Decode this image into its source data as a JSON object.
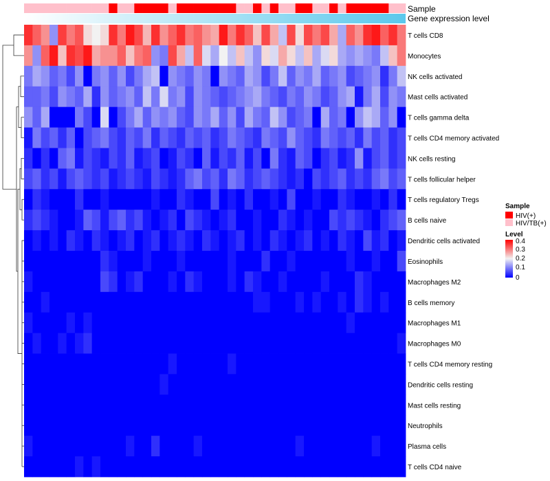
{
  "chart_data": {
    "type": "heatmap",
    "title": "",
    "annotations": {
      "sample_label": "Sample",
      "expression_label": "Gene expression level"
    },
    "legend": {
      "position": "right",
      "sample_title": "Sample",
      "sample_entries": [
        {
          "label": "HIV(+)",
          "color": "#ff0000"
        },
        {
          "label": "HIV/TB(+)",
          "color": "#ffc0cb"
        }
      ],
      "level_title": "Level",
      "level_ticks": [
        "0.4",
        "0.3",
        "0.2",
        "0.1",
        "0"
      ],
      "color_scale": {
        "min": 0,
        "max": 0.4,
        "low": "#0000ff",
        "mid": "#f2f2f2",
        "high": "#ff0000"
      }
    },
    "samples": [
      "HIV/TB(+)",
      "HIV/TB(+)",
      "HIV/TB(+)",
      "HIV/TB(+)",
      "HIV/TB(+)",
      "HIV/TB(+)",
      "HIV/TB(+)",
      "HIV/TB(+)",
      "HIV/TB(+)",
      "HIV/TB(+)",
      "HIV(+)",
      "HIV/TB(+)",
      "HIV/TB(+)",
      "HIV(+)",
      "HIV(+)",
      "HIV(+)",
      "HIV(+)",
      "HIV/TB(+)",
      "HIV(+)",
      "HIV(+)",
      "HIV(+)",
      "HIV(+)",
      "HIV(+)",
      "HIV(+)",
      "HIV(+)",
      "HIV/TB(+)",
      "HIV/TB(+)",
      "HIV(+)",
      "HIV/TB(+)",
      "HIV(+)",
      "HIV/TB(+)",
      "HIV/TB(+)",
      "HIV(+)",
      "HIV(+)",
      "HIV/TB(+)",
      "HIV/TB(+)",
      "HIV(+)",
      "HIV/TB(+)",
      "HIV(+)",
      "HIV(+)",
      "HIV(+)",
      "HIV(+)",
      "HIV(+)",
      "HIV/TB(+)",
      "HIV/TB(+)"
    ],
    "rows": [
      {
        "name": "T cells CD8",
        "values": [
          0.36,
          0.32,
          0.28,
          0.12,
          0.35,
          0.3,
          0.33,
          0.22,
          0.2,
          0.22,
          0.36,
          0.3,
          0.38,
          0.34,
          0.25,
          0.36,
          0.28,
          0.32,
          0.36,
          0.3,
          0.32,
          0.28,
          0.26,
          0.38,
          0.3,
          0.36,
          0.32,
          0.24,
          0.34,
          0.26,
          0.16,
          0.34,
          0.22,
          0.34,
          0.3,
          0.34,
          0.26,
          0.14,
          0.32,
          0.28,
          0.36,
          0.38,
          0.32,
          0.36,
          0.3
        ]
      },
      {
        "name": "Monocytes",
        "values": [
          0.28,
          0.12,
          0.32,
          0.38,
          0.24,
          0.36,
          0.34,
          0.38,
          0.26,
          0.28,
          0.28,
          0.32,
          0.24,
          0.3,
          0.32,
          0.12,
          0.1,
          0.34,
          0.26,
          0.16,
          0.32,
          0.18,
          0.14,
          0.2,
          0.16,
          0.24,
          0.16,
          0.12,
          0.22,
          0.18,
          0.26,
          0.22,
          0.16,
          0.24,
          0.14,
          0.18,
          0.22,
          0.14,
          0.12,
          0.14,
          0.12,
          0.1,
          0.16,
          0.24,
          0.3
        ]
      },
      {
        "name": "NK cells activated",
        "values": [
          0.1,
          0.14,
          0.12,
          0.08,
          0.1,
          0.06,
          0.12,
          0.0,
          0.1,
          0.12,
          0.08,
          0.12,
          0.06,
          0.1,
          0.14,
          0.16,
          0.0,
          0.12,
          0.1,
          0.08,
          0.12,
          0.1,
          0.0,
          0.12,
          0.1,
          0.08,
          0.14,
          0.12,
          0.06,
          0.1,
          0.16,
          0.08,
          0.12,
          0.1,
          0.14,
          0.08,
          0.1,
          0.12,
          0.06,
          0.08,
          0.1,
          0.12,
          0.04,
          0.1,
          0.16
        ]
      },
      {
        "name": "Mast cells activated",
        "values": [
          0.08,
          0.08,
          0.1,
          0.06,
          0.12,
          0.1,
          0.08,
          0.14,
          0.04,
          0.12,
          0.08,
          0.1,
          0.12,
          0.08,
          0.16,
          0.1,
          0.18,
          0.1,
          0.12,
          0.06,
          0.12,
          0.1,
          0.08,
          0.06,
          0.08,
          0.1,
          0.12,
          0.14,
          0.1,
          0.08,
          0.06,
          0.1,
          0.08,
          0.12,
          0.1,
          0.06,
          0.08,
          0.12,
          0.14,
          0.02,
          0.1,
          0.14,
          0.06,
          0.12,
          0.1
        ]
      },
      {
        "name": "T cells gamma delta",
        "values": [
          0.12,
          0.08,
          0.14,
          0.0,
          0.0,
          0.0,
          0.1,
          0.06,
          0.0,
          0.18,
          0.0,
          0.06,
          0.1,
          0.14,
          0.08,
          0.12,
          0.1,
          0.12,
          0.08,
          0.06,
          0.12,
          0.1,
          0.14,
          0.08,
          0.12,
          0.06,
          0.14,
          0.1,
          0.08,
          0.16,
          0.12,
          0.06,
          0.08,
          0.1,
          0.0,
          0.14,
          0.08,
          0.1,
          0.0,
          0.12,
          0.16,
          0.14,
          0.08,
          0.12,
          0.0
        ]
      },
      {
        "name": "T cells CD4 memory activated",
        "values": [
          0.02,
          0.1,
          0.06,
          0.08,
          0.04,
          0.08,
          0.0,
          0.06,
          0.08,
          0.1,
          0.06,
          0.04,
          0.08,
          0.06,
          0.1,
          0.04,
          0.08,
          0.06,
          0.04,
          0.08,
          0.06,
          0.08,
          0.04,
          0.06,
          0.1,
          0.08,
          0.06,
          0.04,
          0.1,
          0.08,
          0.06,
          0.12,
          0.08,
          0.06,
          0.04,
          0.1,
          0.08,
          0.06,
          0.08,
          0.04,
          0.1,
          0.06,
          0.08,
          0.04,
          0.06
        ]
      },
      {
        "name": "NK cells resting",
        "values": [
          0.04,
          0.0,
          0.04,
          0.0,
          0.08,
          0.1,
          0.02,
          0.06,
          0.04,
          0.02,
          0.06,
          0.04,
          0.08,
          0.02,
          0.04,
          0.06,
          0.0,
          0.02,
          0.06,
          0.04,
          0.0,
          0.08,
          0.02,
          0.06,
          0.04,
          0.08,
          0.02,
          0.06,
          0.0,
          0.1,
          0.04,
          0.02,
          0.08,
          0.06,
          0.0,
          0.04,
          0.06,
          0.02,
          0.04,
          0.12,
          0.02,
          0.06,
          0.08,
          0.04,
          0.06
        ]
      },
      {
        "name": "T cells follicular helper",
        "values": [
          0.06,
          0.08,
          0.04,
          0.06,
          0.02,
          0.06,
          0.08,
          0.06,
          0.04,
          0.06,
          0.02,
          0.04,
          0.06,
          0.04,
          0.02,
          0.06,
          0.04,
          0.02,
          0.04,
          0.08,
          0.1,
          0.06,
          0.08,
          0.04,
          0.1,
          0.08,
          0.04,
          0.06,
          0.08,
          0.06,
          0.04,
          0.02,
          0.04,
          0.0,
          0.06,
          0.04,
          0.06,
          0.08,
          0.04,
          0.06,
          0.04,
          0.08,
          0.1,
          0.06,
          0.08
        ]
      },
      {
        "name": "T cells regulatory  Tregs",
        "values": [
          0.0,
          0.04,
          0.02,
          0.0,
          0.0,
          0.0,
          0.04,
          0.0,
          0.0,
          0.02,
          0.0,
          0.0,
          0.0,
          0.0,
          0.0,
          0.02,
          0.0,
          0.0,
          0.04,
          0.02,
          0.0,
          0.0,
          0.06,
          0.0,
          0.02,
          0.0,
          0.04,
          0.0,
          0.0,
          0.02,
          0.0,
          0.06,
          0.0,
          0.0,
          0.02,
          0.0,
          0.0,
          0.04,
          0.02,
          0.0,
          0.0,
          0.02,
          0.0,
          0.04,
          0.0
        ]
      },
      {
        "name": "B cells naive",
        "values": [
          0.04,
          0.06,
          0.04,
          0.02,
          0.0,
          0.0,
          0.02,
          0.08,
          0.06,
          0.02,
          0.06,
          0.08,
          0.04,
          0.06,
          0.02,
          0.0,
          0.02,
          0.04,
          0.0,
          0.06,
          0.04,
          0.02,
          0.0,
          0.02,
          0.04,
          0.0,
          0.0,
          0.02,
          0.0,
          0.0,
          0.04,
          0.02,
          0.0,
          0.02,
          0.0,
          0.0,
          0.06,
          0.04,
          0.06,
          0.04,
          0.02,
          0.0,
          0.04,
          0.06,
          0.08
        ]
      },
      {
        "name": "Dendritic cells activated",
        "values": [
          0.0,
          0.02,
          0.0,
          0.02,
          0.0,
          0.04,
          0.02,
          0.0,
          0.04,
          0.02,
          0.0,
          0.02,
          0.04,
          0.0,
          0.02,
          0.04,
          0.0,
          0.02,
          0.04,
          0.02,
          0.0,
          0.04,
          0.02,
          0.0,
          0.02,
          0.04,
          0.0,
          0.02,
          0.0,
          0.04,
          0.02,
          0.0,
          0.02,
          0.04,
          0.0,
          0.02,
          0.0,
          0.04,
          0.02,
          0.0,
          0.06,
          0.02,
          0.04,
          0.0,
          0.02
        ]
      },
      {
        "name": "Eosinophils",
        "values": [
          0.0,
          0.0,
          0.0,
          0.0,
          0.0,
          0.0,
          0.0,
          0.0,
          0.0,
          0.04,
          0.02,
          0.0,
          0.0,
          0.0,
          0.02,
          0.0,
          0.0,
          0.0,
          0.02,
          0.0,
          0.0,
          0.0,
          0.0,
          0.0,
          0.02,
          0.0,
          0.0,
          0.0,
          0.04,
          0.0,
          0.0,
          0.02,
          0.0,
          0.0,
          0.0,
          0.0,
          0.0,
          0.0,
          0.02,
          0.0,
          0.0,
          0.02,
          0.0,
          0.0,
          0.06
        ]
      },
      {
        "name": "Macrophages M2",
        "values": [
          0.02,
          0.0,
          0.0,
          0.0,
          0.0,
          0.0,
          0.0,
          0.0,
          0.0,
          0.06,
          0.04,
          0.0,
          0.02,
          0.04,
          0.0,
          0.0,
          0.0,
          0.02,
          0.0,
          0.04,
          0.02,
          0.0,
          0.0,
          0.0,
          0.02,
          0.0,
          0.04,
          0.02,
          0.0,
          0.0,
          0.02,
          0.0,
          0.0,
          0.0,
          0.0,
          0.02,
          0.0,
          0.0,
          0.0,
          0.04,
          0.02,
          0.0,
          0.0,
          0.0,
          0.0
        ]
      },
      {
        "name": "B cells memory",
        "values": [
          0.0,
          0.0,
          0.02,
          0.0,
          0.0,
          0.0,
          0.0,
          0.0,
          0.0,
          0.0,
          0.0,
          0.0,
          0.0,
          0.0,
          0.0,
          0.0,
          0.0,
          0.0,
          0.0,
          0.0,
          0.0,
          0.0,
          0.0,
          0.0,
          0.0,
          0.0,
          0.0,
          0.02,
          0.02,
          0.0,
          0.0,
          0.0,
          0.02,
          0.0,
          0.02,
          0.0,
          0.0,
          0.02,
          0.0,
          0.04,
          0.02,
          0.0,
          0.02,
          0.0,
          0.0
        ]
      },
      {
        "name": "Macrophages M1",
        "values": [
          0.02,
          0.0,
          0.0,
          0.0,
          0.0,
          0.02,
          0.0,
          0.02,
          0.0,
          0.0,
          0.0,
          0.0,
          0.0,
          0.0,
          0.0,
          0.0,
          0.0,
          0.0,
          0.0,
          0.0,
          0.0,
          0.0,
          0.0,
          0.0,
          0.0,
          0.0,
          0.0,
          0.0,
          0.0,
          0.0,
          0.0,
          0.0,
          0.0,
          0.0,
          0.0,
          0.0,
          0.0,
          0.0,
          0.02,
          0.0,
          0.0,
          0.0,
          0.0,
          0.0,
          0.0
        ]
      },
      {
        "name": "Macrophages M0",
        "values": [
          0.0,
          0.02,
          0.0,
          0.0,
          0.02,
          0.0,
          0.02,
          0.04,
          0.0,
          0.0,
          0.0,
          0.0,
          0.0,
          0.0,
          0.0,
          0.0,
          0.0,
          0.0,
          0.0,
          0.0,
          0.0,
          0.0,
          0.0,
          0.0,
          0.0,
          0.0,
          0.0,
          0.0,
          0.0,
          0.0,
          0.0,
          0.0,
          0.0,
          0.0,
          0.0,
          0.0,
          0.0,
          0.0,
          0.0,
          0.0,
          0.0,
          0.0,
          0.0,
          0.0,
          0.02
        ]
      },
      {
        "name": "T cells CD4 memory resting",
        "values": [
          0.0,
          0.0,
          0.0,
          0.0,
          0.0,
          0.0,
          0.0,
          0.0,
          0.0,
          0.0,
          0.0,
          0.0,
          0.0,
          0.0,
          0.0,
          0.0,
          0.0,
          0.02,
          0.0,
          0.0,
          0.0,
          0.0,
          0.0,
          0.0,
          0.02,
          0.0,
          0.0,
          0.0,
          0.0,
          0.0,
          0.0,
          0.0,
          0.0,
          0.0,
          0.0,
          0.0,
          0.0,
          0.0,
          0.0,
          0.0,
          0.0,
          0.0,
          0.0,
          0.0,
          0.0
        ]
      },
      {
        "name": "Dendritic cells resting",
        "values": [
          0.0,
          0.0,
          0.0,
          0.0,
          0.0,
          0.0,
          0.0,
          0.0,
          0.0,
          0.0,
          0.0,
          0.0,
          0.0,
          0.0,
          0.0,
          0.0,
          0.02,
          0.0,
          0.0,
          0.0,
          0.0,
          0.0,
          0.0,
          0.0,
          0.0,
          0.0,
          0.0,
          0.0,
          0.0,
          0.0,
          0.0,
          0.0,
          0.0,
          0.0,
          0.0,
          0.0,
          0.0,
          0.0,
          0.0,
          0.0,
          0.0,
          0.0,
          0.0,
          0.0,
          0.0
        ]
      },
      {
        "name": "Mast cells resting",
        "values": [
          0.0,
          0.0,
          0.0,
          0.0,
          0.0,
          0.0,
          0.0,
          0.0,
          0.0,
          0.0,
          0.0,
          0.0,
          0.0,
          0.0,
          0.0,
          0.0,
          0.0,
          0.0,
          0.0,
          0.0,
          0.0,
          0.0,
          0.0,
          0.0,
          0.0,
          0.0,
          0.0,
          0.0,
          0.0,
          0.0,
          0.0,
          0.0,
          0.0,
          0.0,
          0.0,
          0.0,
          0.0,
          0.0,
          0.0,
          0.0,
          0.0,
          0.0,
          0.0,
          0.0,
          0.0
        ]
      },
      {
        "name": "Neutrophils",
        "values": [
          0.0,
          0.0,
          0.0,
          0.0,
          0.0,
          0.0,
          0.0,
          0.0,
          0.0,
          0.0,
          0.0,
          0.0,
          0.0,
          0.0,
          0.0,
          0.0,
          0.0,
          0.0,
          0.0,
          0.0,
          0.0,
          0.0,
          0.0,
          0.0,
          0.0,
          0.0,
          0.0,
          0.0,
          0.0,
          0.0,
          0.0,
          0.0,
          0.0,
          0.0,
          0.0,
          0.0,
          0.0,
          0.0,
          0.0,
          0.0,
          0.0,
          0.0,
          0.0,
          0.0,
          0.0
        ]
      },
      {
        "name": "Plasma cells",
        "values": [
          0.02,
          0.0,
          0.0,
          0.0,
          0.0,
          0.0,
          0.0,
          0.0,
          0.0,
          0.0,
          0.0,
          0.0,
          0.02,
          0.0,
          0.0,
          0.04,
          0.0,
          0.0,
          0.0,
          0.0,
          0.02,
          0.0,
          0.0,
          0.0,
          0.0,
          0.0,
          0.0,
          0.0,
          0.0,
          0.0,
          0.0,
          0.0,
          0.02,
          0.0,
          0.0,
          0.0,
          0.0,
          0.0,
          0.0,
          0.0,
          0.0,
          0.02,
          0.0,
          0.0,
          0.0
        ]
      },
      {
        "name": "T cells CD4 naive",
        "values": [
          0.0,
          0.0,
          0.0,
          0.0,
          0.0,
          0.0,
          0.02,
          0.0,
          0.02,
          0.0,
          0.0,
          0.0,
          0.0,
          0.0,
          0.0,
          0.0,
          0.0,
          0.0,
          0.0,
          0.0,
          0.0,
          0.0,
          0.0,
          0.0,
          0.0,
          0.0,
          0.0,
          0.0,
          0.0,
          0.0,
          0.0,
          0.0,
          0.0,
          0.0,
          0.0,
          0.0,
          0.0,
          0.0,
          0.0,
          0.0,
          0.0,
          0.0,
          0.0,
          0.0,
          0.0
        ]
      }
    ]
  }
}
